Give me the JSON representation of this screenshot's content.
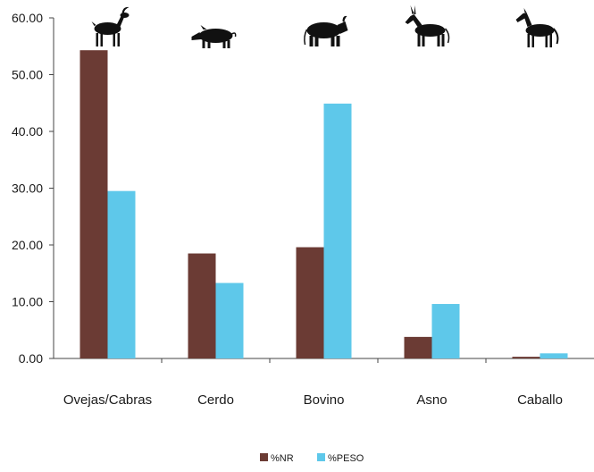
{
  "chart_data": {
    "type": "bar",
    "categories": [
      "Ovejas/Cabras",
      "Cerdo",
      "Bovino",
      "Asno",
      "Caballo"
    ],
    "category_icons": [
      "goat-icon",
      "pig-icon",
      "cow-icon",
      "donkey-icon",
      "horse-icon"
    ],
    "series": [
      {
        "name": "%NR",
        "color": "#6b3b34",
        "values": [
          54.3,
          18.5,
          19.6,
          3.8,
          0.3
        ]
      },
      {
        "name": "%PESO",
        "color": "#5ec8ea",
        "values": [
          29.5,
          13.3,
          44.9,
          9.6,
          0.9
        ]
      }
    ],
    "ylim": [
      0,
      60
    ],
    "yticks": [
      "60.00",
      "50.00",
      "40.00",
      "30.00",
      "20.00",
      "10.00",
      "0.00"
    ],
    "title": "",
    "xlabel": "",
    "ylabel": "",
    "legend_position": "bottom-center",
    "grid": false
  }
}
